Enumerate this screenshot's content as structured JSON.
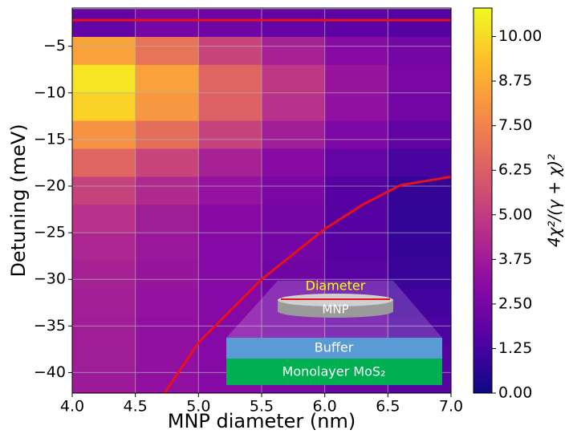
{
  "chart_data": {
    "type": "heatmap",
    "xlabel": "MNP diameter (nm)",
    "ylabel": "Detuning (meV)",
    "colorbar_label": "4χ²/(γ + χ)²",
    "colormap": "plasma",
    "x": [
      4.25,
      4.75,
      5.25,
      5.75,
      6.25,
      6.75
    ],
    "y": [
      -2.5,
      -5.5,
      -8.5,
      -11.5,
      -14.5,
      -17.5,
      -20.5,
      -23.5,
      -26.5,
      -29.5,
      -32.5,
      -35.5,
      -38.5,
      -41.5
    ],
    "z": [
      [
        2.0,
        2.5,
        2.3,
        2.0,
        1.8,
        1.6
      ],
      [
        8.5,
        7.0,
        5.3,
        4.0,
        3.0,
        2.4
      ],
      [
        10.3,
        8.5,
        6.5,
        4.8,
        3.5,
        2.6
      ],
      [
        9.8,
        8.2,
        6.3,
        4.6,
        3.3,
        2.4
      ],
      [
        8.0,
        6.8,
        5.2,
        3.8,
        2.7,
        1.9
      ],
      [
        6.5,
        5.3,
        4.0,
        3.0,
        2.0,
        1.3
      ],
      [
        5.2,
        4.3,
        3.4,
        2.6,
        1.6,
        0.9
      ],
      [
        4.6,
        3.8,
        3.0,
        2.4,
        1.6,
        0.8
      ],
      [
        4.2,
        3.6,
        2.9,
        2.4,
        1.6,
        0.9
      ],
      [
        4.0,
        3.5,
        2.9,
        2.3,
        1.7,
        1.0
      ],
      [
        3.9,
        3.4,
        2.9,
        2.4,
        1.8,
        1.2
      ],
      [
        3.8,
        3.3,
        2.9,
        2.5,
        2.0,
        1.4
      ],
      [
        3.8,
        3.3,
        2.9,
        2.5,
        2.1,
        1.6
      ],
      [
        3.7,
        3.3,
        2.9,
        2.6,
        2.2,
        1.7
      ]
    ],
    "lines": [
      {
        "color": "#e8101a",
        "x": [
          4.0,
          7.0
        ],
        "y": [
          -2.2,
          -2.2
        ]
      },
      {
        "color": "#e8101a",
        "x": [
          4.73,
          5.0,
          5.5,
          6.0,
          6.3,
          6.6,
          7.0
        ],
        "y": [
          -42.2,
          -36.8,
          -30.0,
          -24.6,
          -22.0,
          -19.9,
          -19.0
        ]
      }
    ],
    "xlim": [
      4.0,
      7.0
    ],
    "ylim": [
      -42.2,
      -0.9
    ],
    "clim": [
      0,
      10.8
    ],
    "xticks": [
      {
        "value": 4.0,
        "label": "4.0"
      },
      {
        "value": 4.5,
        "label": "4.5"
      },
      {
        "value": 5.0,
        "label": "5.0"
      },
      {
        "value": 5.5,
        "label": "5.5"
      },
      {
        "value": 6.0,
        "label": "6.0"
      },
      {
        "value": 6.5,
        "label": "6.5"
      },
      {
        "value": 7.0,
        "label": "7.0"
      }
    ],
    "yticks": [
      {
        "value": -5,
        "label": "−5"
      },
      {
        "value": -10,
        "label": "−10"
      },
      {
        "value": -15,
        "label": "−15"
      },
      {
        "value": -20,
        "label": "−20"
      },
      {
        "value": -25,
        "label": "−25"
      },
      {
        "value": -30,
        "label": "−30"
      },
      {
        "value": -35,
        "label": "−35"
      },
      {
        "value": -40,
        "label": "−40"
      }
    ],
    "cticks": [
      {
        "value": 0,
        "label": "0.00"
      },
      {
        "value": 1.25,
        "label": "1.25"
      },
      {
        "value": 2.5,
        "label": "2.50"
      },
      {
        "value": 3.75,
        "label": "3.75"
      },
      {
        "value": 5,
        "label": "5.00"
      },
      {
        "value": 6.25,
        "label": "6.25"
      },
      {
        "value": 7.5,
        "label": "7.50"
      },
      {
        "value": 8.75,
        "label": "8.75"
      },
      {
        "value": 10,
        "label": "10.00"
      }
    ],
    "grid": true,
    "inset": {
      "top_label": "Diameter",
      "particle": "MNP",
      "buffer": "Buffer",
      "substrate": "Monolayer MoS₂"
    }
  }
}
